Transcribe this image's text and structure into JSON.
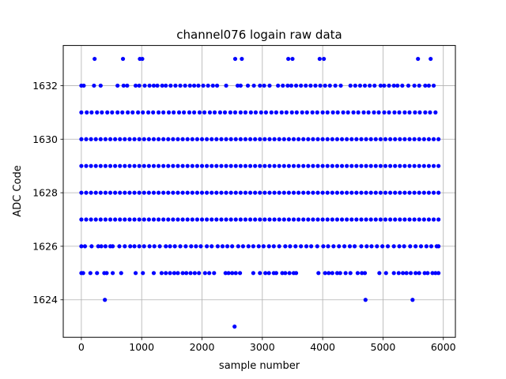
{
  "chart_data": {
    "type": "scatter",
    "title": "channel076 logain raw data",
    "xlabel": "sample number",
    "ylabel": "ADC Code",
    "xlim": [
      -300,
      6200
    ],
    "ylim": [
      1622.6,
      1633.5
    ],
    "xticks": [
      0,
      1000,
      2000,
      3000,
      4000,
      5000,
      6000
    ],
    "yticks": [
      1624,
      1626,
      1628,
      1630,
      1632
    ],
    "grid": true,
    "marker_color": "#0000ff",
    "series": [
      {
        "levels": [
          {
            "y": 1623,
            "x": [
              2540
            ]
          },
          {
            "y": 1624,
            "x": [
              390,
              4710,
              5490
            ]
          },
          {
            "y": 1625,
            "x": [
              0,
              30,
              150,
              260,
              380,
              420,
              520,
              660,
              900,
              1020,
              1200,
              1330,
              1400,
              1470,
              1540,
              1600,
              1680,
              1740,
              1810,
              1880,
              1950,
              2050,
              2120,
              2200,
              2390,
              2440,
              2500,
              2560,
              2630,
              2850,
              2960,
              3050,
              3110,
              3190,
              3230,
              3330,
              3380,
              3450,
              3520,
              3560,
              3930,
              4040,
              4100,
              4160,
              4240,
              4290,
              4380,
              4460,
              4580,
              4650,
              4700,
              4940,
              5050,
              5180,
              5260,
              5330,
              5390,
              5460,
              5540,
              5600,
              5690,
              5740,
              5820,
              5870,
              5920
            ]
          },
          {
            "y": 1626,
            "x": [
              0,
              60,
              170,
              280,
              330,
              400,
              480,
              520,
              630,
              720,
              810,
              880,
              960,
              1040,
              1130,
              1210,
              1300,
              1400,
              1470,
              1550,
              1640,
              1730,
              1820,
              1900,
              1980,
              2080,
              2160,
              2260,
              2340,
              2420,
              2500,
              2600,
              2680,
              2770,
              2850,
              2940,
              3020,
              3110,
              3190,
              3280,
              3380,
              3460,
              3550,
              3640,
              3730,
              3810,
              3910,
              4010,
              4090,
              4180,
              4270,
              4360,
              4450,
              4530,
              4640,
              4730,
              4810,
              4900,
              4990,
              5080,
              5180,
              5270,
              5350,
              5450,
              5540,
              5630,
              5720,
              5800,
              5890,
              5920
            ]
          },
          {
            "y": 1627,
            "x": [
              0,
              80,
              160,
              240,
              320,
              400,
              480,
              560,
              640,
              720,
              800,
              880,
              960,
              1040,
              1120,
              1200,
              1280,
              1360,
              1440,
              1520,
              1600,
              1680,
              1760,
              1840,
              1920,
              2000,
              2080,
              2160,
              2240,
              2320,
              2400,
              2480,
              2560,
              2640,
              2720,
              2800,
              2880,
              2960,
              3040,
              3120,
              3200,
              3280,
              3360,
              3440,
              3520,
              3600,
              3680,
              3760,
              3840,
              3920,
              4000,
              4080,
              4160,
              4240,
              4320,
              4400,
              4480,
              4560,
              4640,
              4720,
              4800,
              4880,
              4960,
              5040,
              5120,
              5200,
              5280,
              5360,
              5440,
              5520,
              5600,
              5680,
              5760,
              5840,
              5920
            ]
          },
          {
            "y": 1628,
            "x": [
              0,
              80,
              160,
              240,
              320,
              400,
              480,
              560,
              640,
              720,
              800,
              880,
              960,
              1040,
              1120,
              1200,
              1280,
              1360,
              1440,
              1520,
              1600,
              1680,
              1760,
              1840,
              1920,
              2000,
              2080,
              2160,
              2240,
              2320,
              2400,
              2480,
              2560,
              2640,
              2720,
              2800,
              2880,
              2960,
              3040,
              3120,
              3200,
              3280,
              3360,
              3440,
              3520,
              3600,
              3680,
              3760,
              3840,
              3920,
              4000,
              4080,
              4160,
              4240,
              4320,
              4400,
              4480,
              4560,
              4640,
              4720,
              4800,
              4880,
              4960,
              5040,
              5120,
              5200,
              5280,
              5360,
              5440,
              5520,
              5600,
              5680,
              5760,
              5840,
              5920
            ]
          },
          {
            "y": 1629,
            "x": [
              0,
              80,
              160,
              240,
              320,
              400,
              480,
              560,
              640,
              720,
              800,
              880,
              960,
              1040,
              1120,
              1200,
              1280,
              1360,
              1440,
              1520,
              1600,
              1680,
              1760,
              1840,
              1920,
              2000,
              2080,
              2160,
              2240,
              2320,
              2400,
              2480,
              2560,
              2640,
              2720,
              2800,
              2880,
              2960,
              3040,
              3120,
              3200,
              3280,
              3360,
              3440,
              3520,
              3600,
              3680,
              3760,
              3840,
              3920,
              4000,
              4080,
              4160,
              4240,
              4320,
              4400,
              4480,
              4560,
              4640,
              4720,
              4800,
              4880,
              4960,
              5040,
              5120,
              5200,
              5280,
              5360,
              5440,
              5520,
              5600,
              5680,
              5760,
              5840,
              5920
            ]
          },
          {
            "y": 1630,
            "x": [
              0,
              80,
              160,
              240,
              320,
              400,
              480,
              560,
              640,
              720,
              800,
              880,
              960,
              1040,
              1120,
              1200,
              1280,
              1360,
              1440,
              1520,
              1600,
              1680,
              1760,
              1840,
              1920,
              2000,
              2080,
              2160,
              2240,
              2320,
              2400,
              2480,
              2560,
              2640,
              2720,
              2800,
              2880,
              2960,
              3040,
              3120,
              3200,
              3280,
              3360,
              3440,
              3520,
              3600,
              3680,
              3760,
              3840,
              3920,
              4000,
              4080,
              4160,
              4240,
              4320,
              4400,
              4480,
              4560,
              4640,
              4720,
              4800,
              4880,
              4960,
              5040,
              5120,
              5200,
              5280,
              5360,
              5440,
              5520,
              5600,
              5680,
              5760,
              5840,
              5920
            ]
          },
          {
            "y": 1631,
            "x": [
              0,
              90,
              170,
              260,
              340,
              430,
              510,
              600,
              680,
              770,
              850,
              940,
              1020,
              1110,
              1190,
              1280,
              1360,
              1450,
              1530,
              1620,
              1700,
              1790,
              1870,
              1960,
              2040,
              2130,
              2210,
              2300,
              2380,
              2470,
              2550,
              2640,
              2720,
              2810,
              2890,
              2980,
              3060,
              3150,
              3230,
              3320,
              3400,
              3490,
              3570,
              3660,
              3740,
              3830,
              3910,
              4000,
              4080,
              4170,
              4250,
              4340,
              4420,
              4510,
              4590,
              4680,
              4760,
              4850,
              4930,
              5020,
              5100,
              5190,
              5270,
              5360,
              5440,
              5530,
              5610,
              5700,
              5780,
              5870
            ]
          },
          {
            "y": 1632,
            "x": [
              0,
              40,
              210,
              320,
              600,
              700,
              760,
              900,
              960,
              1050,
              1130,
              1200,
              1260,
              1340,
              1400,
              1480,
              1560,
              1640,
              1720,
              1800,
              1870,
              1940,
              2020,
              2100,
              2180,
              2250,
              2400,
              2590,
              2640,
              2760,
              2860,
              2960,
              3030,
              3120,
              3260,
              3340,
              3420,
              3480,
              3560,
              3640,
              3720,
              3800,
              3880,
              3960,
              4040,
              4120,
              4210,
              4300,
              4460,
              4540,
              4620,
              4700,
              4780,
              4860,
              4960,
              5020,
              5100,
              5180,
              5240,
              5320,
              5420,
              5520,
              5600,
              5700,
              5760,
              5840
            ]
          },
          {
            "y": 1633,
            "x": [
              220,
              690,
              970,
              1010,
              2550,
              2660,
              3430,
              3500,
              3950,
              4020,
              5580,
              5790
            ]
          }
        ]
      }
    ]
  }
}
